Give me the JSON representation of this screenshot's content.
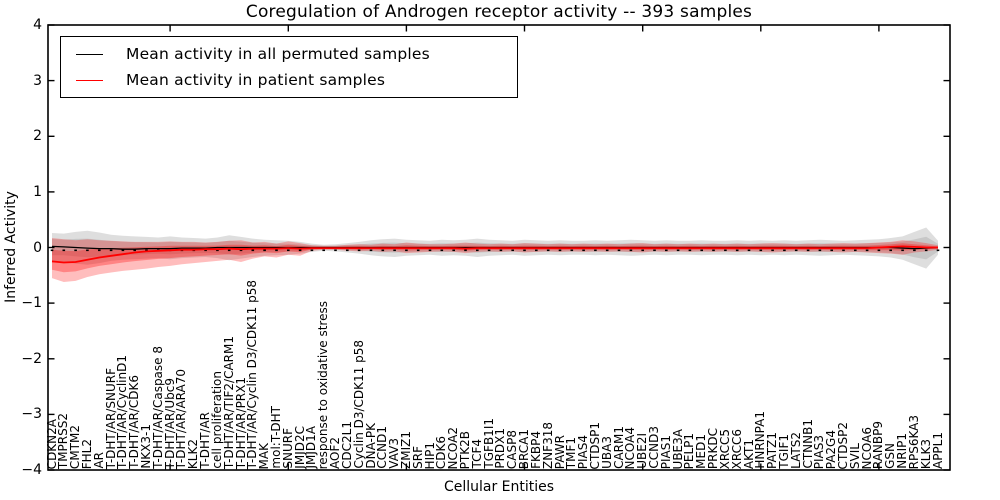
{
  "chart_data": {
    "type": "line",
    "title": "Coregulation of Androgen receptor activity -- 393 samples",
    "xlabel": "Cellular Entities",
    "ylabel": "Inferred Activity",
    "sample_count": 393,
    "ylim": [
      -4,
      4
    ],
    "yticks": [
      4,
      3,
      2,
      1,
      0,
      -1,
      -2,
      -3,
      -4
    ],
    "ytick_labels": [
      "4",
      "3",
      "2",
      "1",
      "0",
      "−1",
      "−2",
      "−3",
      "−4"
    ],
    "grid": false,
    "legend_position": "upper left",
    "top_tick_indices": [
      10,
      20,
      30,
      40,
      50,
      60,
      70
    ],
    "marker_row_value": -0.05,
    "categories": [
      "CDKN2A",
      "TMPRSS2",
      "CMTM2",
      "FHL2",
      "AR",
      "T-DHT/AR/SNURF",
      "T-DHT/AR/CyclinD1",
      "T-DHT/AR/CDK6",
      "NKX3-1",
      "T-DHT/AR/Caspase 8",
      "T-DHT/AR/Ubc9",
      "T-DHT/AR/ARA70",
      "KLK2",
      "T-DHT/AR",
      "cell proliferation",
      "T-DHT/AR/TIF2/CARM1",
      "T-DHT/AR/PRX1",
      "T-DHT/AR/Cyclin D3/CDK11 p58",
      "MAK",
      "mol:T-DHT",
      "SNURF",
      "JMJD2C",
      "JMJD1A",
      "response to oxidative stress",
      "AOF2",
      "CDC2L1",
      "Cyclin D3/CDK11 p58",
      "DNA-PK",
      "CCND1",
      "VAV3",
      "ZMIZ1",
      "SRF",
      "HIP1",
      "CDK6",
      "NCOA2",
      "PTK2B",
      "TCF4",
      "TGFB1I1",
      "PRDX1",
      "CASP8",
      "BRCA1",
      "FKBP4",
      "ZNF318",
      "PAWR",
      "TMF1",
      "PIAS4",
      "CTDSP1",
      "UBA3",
      "CARM1",
      "NCOA4",
      "UBE2I",
      "CCND3",
      "PIAS1",
      "UBE3A",
      "PELP1",
      "MED1",
      "PRKDC",
      "XRCC5",
      "XRCC6",
      "AKT1",
      "HNRNPA1",
      "PATZ1",
      "TGIF1",
      "LATS2",
      "CTNNB1",
      "PIAS3",
      "PA2G4",
      "CTDSP2",
      "SVIL",
      "NCOA6",
      "RANBP9",
      "GSN",
      "NRIP1",
      "RPS6KA3",
      "KLK3",
      "APPL1"
    ],
    "series": [
      {
        "name": "Mean activity in all permuted samples",
        "color": "#000000",
        "band_color": "rgba(0,0,0,0.13)",
        "band_inner_color": "rgba(0,0,0,0.10)",
        "values": [
          0.02,
          0.01,
          0.0,
          -0.01,
          -0.02,
          -0.02,
          -0.03,
          -0.03,
          -0.02,
          -0.02,
          -0.02,
          -0.01,
          -0.01,
          -0.01,
          0.0,
          0.0,
          0.0,
          0.0,
          0.0,
          0.0,
          0.0,
          0.0,
          0.0,
          0.0,
          0.0,
          0.0,
          0.0,
          0.0,
          0.0,
          0.0,
          0.0,
          0.0,
          0.0,
          0.0,
          0.0,
          0.0,
          0.0,
          0.0,
          0.0,
          0.0,
          0.0,
          0.0,
          0.0,
          0.0,
          0.0,
          0.0,
          0.0,
          0.0,
          0.0,
          0.0,
          0.0,
          0.0,
          0.0,
          0.0,
          0.0,
          0.0,
          0.0,
          0.0,
          0.0,
          0.0,
          0.0,
          0.0,
          0.0,
          0.0,
          0.0,
          0.0,
          0.0,
          0.0,
          0.0,
          0.0,
          0.0,
          0.0,
          -0.01,
          -0.02,
          -0.01,
          0.0
        ],
        "band_upper": [
          0.26,
          0.25,
          0.28,
          0.3,
          0.27,
          0.23,
          0.21,
          0.2,
          0.19,
          0.18,
          0.2,
          0.18,
          0.17,
          0.16,
          0.18,
          0.22,
          0.19,
          0.16,
          0.14,
          0.13,
          0.12,
          0.1,
          0.07,
          0.05,
          0.06,
          0.08,
          0.1,
          0.13,
          0.15,
          0.16,
          0.14,
          0.13,
          0.12,
          0.14,
          0.13,
          0.14,
          0.16,
          0.14,
          0.13,
          0.12,
          0.14,
          0.13,
          0.12,
          0.13,
          0.12,
          0.12,
          0.13,
          0.12,
          0.13,
          0.14,
          0.13,
          0.12,
          0.13,
          0.12,
          0.12,
          0.13,
          0.12,
          0.12,
          0.13,
          0.12,
          0.13,
          0.12,
          0.13,
          0.12,
          0.13,
          0.14,
          0.13,
          0.12,
          0.13,
          0.14,
          0.15,
          0.17,
          0.2,
          0.28,
          0.36,
          0.12
        ],
        "band_lower": [
          -0.27,
          -0.26,
          -0.29,
          -0.31,
          -0.28,
          -0.24,
          -0.22,
          -0.21,
          -0.2,
          -0.19,
          -0.21,
          -0.19,
          -0.18,
          -0.17,
          -0.19,
          -0.23,
          -0.2,
          -0.17,
          -0.15,
          -0.14,
          -0.13,
          -0.11,
          -0.08,
          -0.06,
          -0.07,
          -0.09,
          -0.11,
          -0.14,
          -0.16,
          -0.17,
          -0.15,
          -0.14,
          -0.13,
          -0.15,
          -0.14,
          -0.15,
          -0.17,
          -0.15,
          -0.14,
          -0.13,
          -0.15,
          -0.14,
          -0.13,
          -0.14,
          -0.13,
          -0.13,
          -0.14,
          -0.13,
          -0.14,
          -0.15,
          -0.14,
          -0.13,
          -0.14,
          -0.13,
          -0.13,
          -0.14,
          -0.13,
          -0.13,
          -0.14,
          -0.13,
          -0.14,
          -0.13,
          -0.14,
          -0.13,
          -0.14,
          -0.15,
          -0.14,
          -0.13,
          -0.14,
          -0.15,
          -0.16,
          -0.18,
          -0.22,
          -0.3,
          -0.38,
          -0.13
        ]
      },
      {
        "name": "Mean activity in patient samples",
        "color": "#ff0000",
        "band_color": "rgba(255,0,0,0.26)",
        "band_inner_color": "rgba(255,0,0,0.30)",
        "values": [
          -0.25,
          -0.27,
          -0.26,
          -0.22,
          -0.18,
          -0.15,
          -0.12,
          -0.09,
          -0.07,
          -0.06,
          -0.05,
          -0.04,
          -0.04,
          -0.03,
          -0.03,
          -0.02,
          -0.03,
          -0.02,
          -0.02,
          -0.02,
          -0.01,
          -0.02,
          -0.01,
          -0.01,
          -0.01,
          -0.01,
          -0.01,
          -0.01,
          -0.01,
          -0.01,
          -0.01,
          -0.01,
          -0.01,
          -0.01,
          -0.01,
          -0.02,
          -0.01,
          -0.01,
          -0.01,
          -0.01,
          -0.01,
          -0.01,
          -0.01,
          -0.01,
          -0.01,
          -0.01,
          -0.01,
          -0.01,
          -0.01,
          -0.01,
          -0.01,
          -0.01,
          -0.01,
          -0.01,
          -0.01,
          -0.01,
          -0.01,
          -0.01,
          -0.01,
          -0.01,
          -0.01,
          -0.01,
          -0.01,
          -0.01,
          -0.01,
          -0.01,
          -0.01,
          -0.01,
          -0.01,
          -0.01,
          0.0,
          0.01,
          0.02,
          0.01,
          0.0,
          0.0
        ],
        "band_upper": [
          0.17,
          0.15,
          0.13,
          0.15,
          0.13,
          0.12,
          0.11,
          0.1,
          0.1,
          0.1,
          0.11,
          0.1,
          0.1,
          0.09,
          0.1,
          0.12,
          0.13,
          0.09,
          0.1,
          0.07,
          0.11,
          0.08,
          0.04,
          0.03,
          0.03,
          0.05,
          0.06,
          0.05,
          0.07,
          0.06,
          0.09,
          0.07,
          0.06,
          0.06,
          0.07,
          0.09,
          0.07,
          0.06,
          0.07,
          0.06,
          0.08,
          0.07,
          0.06,
          0.07,
          0.06,
          0.07,
          0.06,
          0.07,
          0.06,
          0.07,
          0.08,
          0.06,
          0.07,
          0.06,
          0.07,
          0.06,
          0.07,
          0.06,
          0.07,
          0.06,
          0.07,
          0.08,
          0.07,
          0.06,
          0.07,
          0.06,
          0.07,
          0.08,
          0.07,
          0.08,
          0.09,
          0.1,
          0.13,
          0.11,
          0.08,
          0.04
        ],
        "band_lower": [
          -0.55,
          -0.62,
          -0.6,
          -0.53,
          -0.48,
          -0.45,
          -0.42,
          -0.4,
          -0.38,
          -0.35,
          -0.33,
          -0.3,
          -0.28,
          -0.26,
          -0.24,
          -0.22,
          -0.26,
          -0.2,
          -0.16,
          -0.18,
          -0.13,
          -0.15,
          -0.06,
          -0.04,
          -0.04,
          -0.06,
          -0.07,
          -0.06,
          -0.08,
          -0.07,
          -0.1,
          -0.09,
          -0.08,
          -0.07,
          -0.08,
          -0.1,
          -0.08,
          -0.07,
          -0.08,
          -0.07,
          -0.09,
          -0.08,
          -0.07,
          -0.08,
          -0.07,
          -0.08,
          -0.07,
          -0.08,
          -0.07,
          -0.08,
          -0.09,
          -0.07,
          -0.08,
          -0.07,
          -0.08,
          -0.07,
          -0.08,
          -0.07,
          -0.08,
          -0.07,
          -0.08,
          -0.09,
          -0.08,
          -0.07,
          -0.08,
          -0.07,
          -0.08,
          -0.09,
          -0.08,
          -0.09,
          -0.1,
          -0.11,
          -0.13,
          -0.09,
          -0.07,
          -0.04
        ]
      }
    ]
  }
}
